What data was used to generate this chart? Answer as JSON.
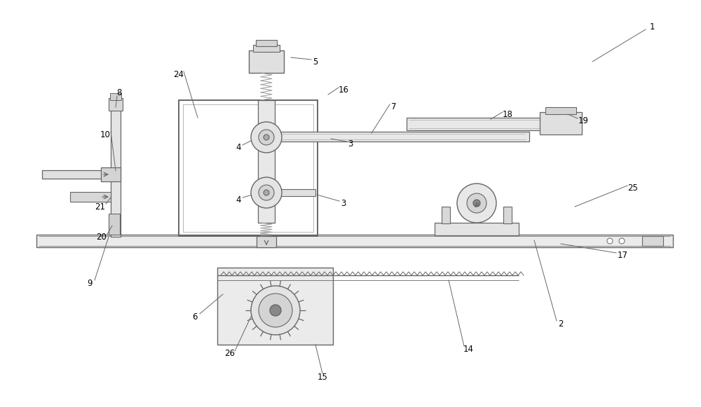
{
  "bg_color": "#ffffff",
  "line_color": "#999999",
  "dark_line": "#666666",
  "fig_width": 10.0,
  "fig_height": 5.81,
  "dpi": 100
}
